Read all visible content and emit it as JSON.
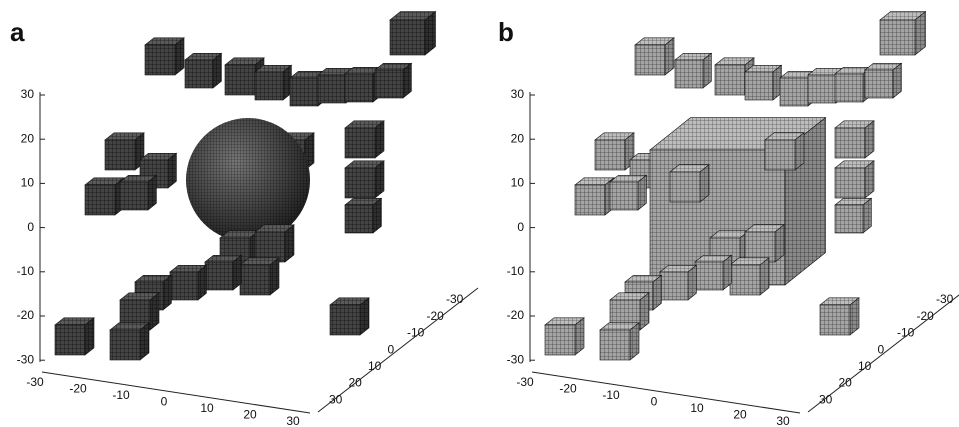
{
  "panels": [
    {
      "label": "a",
      "z_ticks": [
        30,
        20,
        10,
        0,
        -10,
        -20,
        -30
      ],
      "x_ticks": [
        -30,
        -20,
        -10,
        0,
        10,
        20,
        30
      ],
      "y_ticks": [
        -30,
        -20,
        -10,
        0,
        10,
        20,
        30
      ]
    },
    {
      "label": "b",
      "z_ticks": [
        30,
        20,
        10,
        0,
        -10,
        -20,
        -30
      ],
      "x_ticks": [
        -30,
        -20,
        -10,
        0,
        10,
        20,
        30
      ],
      "y_ticks": [
        -30,
        -20,
        -10,
        0,
        10,
        20,
        30
      ]
    }
  ]
}
